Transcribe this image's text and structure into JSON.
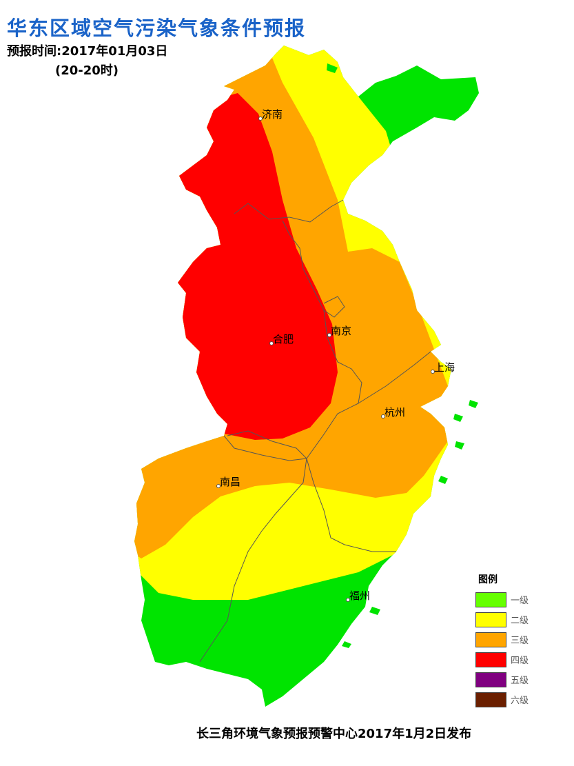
{
  "title": "华东区域空气污染气象条件预报",
  "forecast_time": "预报时间:2017年01月03日",
  "forecast_period": "(20-20时)",
  "cities": [
    {
      "name": "济南"
    },
    {
      "name": "南京"
    },
    {
      "name": "合肥"
    },
    {
      "name": "上海"
    },
    {
      "name": "杭州"
    },
    {
      "name": "南昌"
    },
    {
      "name": "福州"
    }
  ],
  "legend": {
    "title": "图例",
    "items": [
      {
        "label": "一级",
        "color": "#66ff00"
      },
      {
        "label": "二级",
        "color": "#ffff00"
      },
      {
        "label": "三级",
        "color": "#ffa500"
      },
      {
        "label": "四级",
        "color": "#ff0000"
      },
      {
        "label": "五级",
        "color": "#800080"
      },
      {
        "label": "六级",
        "color": "#6b1f00"
      }
    ]
  },
  "zone_colors": {
    "green": "#00e400",
    "yellow": "#ffff00",
    "orange": "#ffa500",
    "red": "#ff0000"
  },
  "footer": "长三角环境气象预报预警中心2017年1月2日发布"
}
